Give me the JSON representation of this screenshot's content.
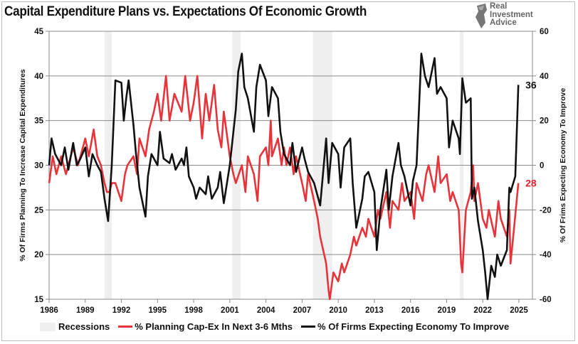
{
  "title": "Capital Expenditure Plans vs. Expectations Of Economic Growth",
  "logo": {
    "lines": [
      "Real",
      "Investment",
      "Advice"
    ]
  },
  "colors": {
    "capex": "#e8333a",
    "economy": "#111111",
    "recession": "#efefef",
    "grid": "#8c8c8c"
  },
  "chart_data": {
    "type": "line",
    "title": "Capital Expenditure Plans vs. Expectations Of Economic Growth",
    "ylabel": "% Of Firms Planning To Increase Capital Expenditures",
    "y2label": "% Of Frims Expecting Economy To Improve",
    "xlim": [
      1986,
      2026.1
    ],
    "ylim": [
      15,
      45
    ],
    "y2lim": [
      -60,
      60
    ],
    "grid": true,
    "xticks": [
      "1986",
      "1989",
      "1992",
      "1995",
      "1998",
      "2001",
      "2004",
      "2007",
      "2010",
      "2013",
      "2016",
      "2019",
      "2022",
      "2025"
    ],
    "yticks": [
      "15",
      "20",
      "25",
      "30",
      "35",
      "40",
      "45"
    ],
    "y2ticks": [
      "-60",
      "-40",
      "-20",
      "0",
      "20",
      "40",
      "60"
    ],
    "recessions": [
      [
        1990.6,
        1991.2
      ],
      [
        2001.2,
        2001.9
      ],
      [
        2007.9,
        2009.5
      ],
      [
        2020.1,
        2020.4
      ]
    ],
    "legend": {
      "placement": "bottom",
      "entries": [
        "Recessions",
        "% Planning Cap-Ex In Next 3-6 Mths",
        "% Of Firms Expecting Economy To Improve"
      ]
    },
    "end_labels": {
      "economy": "36",
      "capex": "28"
    },
    "series": [
      {
        "name": "% Planning Cap-Ex In Next 3-6 Mths",
        "axis": "left",
        "x": [
          1986,
          1986.3,
          1986.6,
          1987,
          1987.4,
          1988,
          1988.4,
          1989,
          1989.3,
          1989.7,
          1990,
          1990.3,
          1990.6,
          1990.8,
          1991,
          1991.2,
          1991.5,
          1992,
          1992.3,
          1992.5,
          1993,
          1993.3,
          1993.5,
          1994,
          1994.3,
          1994.7,
          1995,
          1995.3,
          1995.7,
          1996,
          1996.4,
          1997,
          1997.3,
          1997.7,
          1998,
          1998.3,
          1998.7,
          1999,
          1999.3,
          1999.7,
          2000,
          2000.3,
          2000.5,
          2000.8,
          2001,
          2001.3,
          2001.5,
          2002,
          2002.3,
          2002.5,
          2003,
          2003.3,
          2003.5,
          2004,
          2004.2,
          2004.4,
          2004.5,
          2005,
          2005.3,
          2005.5,
          2005.7,
          2006,
          2006.3,
          2006.5,
          2007,
          2007.3,
          2007.5,
          2008,
          2008.3,
          2008.5,
          2009,
          2009.2,
          2009.3,
          2009.6,
          2010,
          2010.3,
          2010.5,
          2011,
          2011.3,
          2011.5,
          2012,
          2012.3,
          2012.5,
          2013,
          2013.3,
          2013.5,
          2014,
          2014.3,
          2014.5,
          2015,
          2015.3,
          2015.5,
          2016,
          2016.3,
          2016.5,
          2017,
          2017.3,
          2017.5,
          2018,
          2018.3,
          2018.5,
          2019,
          2019.3,
          2019.5,
          2020,
          2020.2,
          2020.3,
          2020.6,
          2021,
          2021.2,
          2021.3,
          2021.6,
          2022,
          2022.3,
          2022.5,
          2023,
          2023.3,
          2023.5,
          2024,
          2024.2,
          2024.3,
          2024.6,
          2024.95
        ],
        "values": [
          28,
          31,
          29,
          31,
          29,
          32,
          30,
          33,
          31,
          34,
          31,
          30,
          28,
          27,
          27,
          28,
          28,
          26,
          29,
          30,
          31,
          29,
          33,
          31,
          34,
          36,
          38,
          35,
          40,
          35,
          38,
          36,
          40,
          35,
          37,
          40,
          33,
          38,
          35,
          39,
          34,
          32,
          36,
          33,
          31,
          29,
          28,
          30,
          27,
          31,
          29,
          26,
          31,
          32,
          30,
          35,
          31,
          33,
          30,
          32,
          30,
          32,
          29,
          31,
          28,
          26,
          29,
          26,
          24,
          22,
          19,
          16,
          15,
          18,
          17,
          19,
          18,
          20,
          22,
          21,
          23,
          22,
          24,
          22,
          25,
          24,
          27,
          23,
          26,
          25,
          28,
          26,
          27,
          24,
          28,
          26,
          29,
          30,
          27,
          31,
          28,
          29,
          26,
          27,
          25,
          19,
          18,
          25,
          27,
          30,
          26,
          28,
          24,
          23,
          25,
          22,
          26,
          24,
          22,
          25,
          19,
          23,
          28
        ]
      },
      {
        "name": "% Of Firms Expecting Economy To Improve",
        "axis": "right",
        "x": [
          1986,
          1986.2,
          1986.5,
          1987,
          1987.3,
          1987.6,
          1988,
          1988.3,
          1988.6,
          1989,
          1989.3,
          1989.6,
          1990,
          1990.3,
          1990.6,
          1990.9,
          1991.2,
          1991.5,
          1992,
          1992.2,
          1992.4,
          1992.6,
          1993,
          1993.2,
          1993.5,
          1994,
          1994.2,
          1994.5,
          1995,
          1995.2,
          1995.5,
          1996,
          1996.2,
          1996.5,
          1997,
          1997.2,
          1997.4,
          1997.6,
          1998,
          1998.2,
          1998.5,
          1999,
          1999.2,
          1999.5,
          2000,
          2000.2,
          2000.5,
          2001,
          2001.3,
          2001.5,
          2001.7,
          2002,
          2002.2,
          2002.5,
          2003,
          2003.2,
          2003.5,
          2004,
          2004.2,
          2004.5,
          2005,
          2005.2,
          2005.5,
          2006,
          2006.2,
          2006.5,
          2007,
          2007.2,
          2007.5,
          2008,
          2008.2,
          2008.5,
          2009,
          2009.2,
          2009.5,
          2010,
          2010.2,
          2010.5,
          2011,
          2011.2,
          2011.5,
          2012,
          2012.2,
          2012.5,
          2013,
          2013.2,
          2013.5,
          2014,
          2014.2,
          2014.5,
          2015,
          2015.2,
          2015.5,
          2016,
          2016.2,
          2016.5,
          2016.9,
          2017.2,
          2017.5,
          2018,
          2018.2,
          2018.5,
          2019,
          2019.2,
          2019.5,
          2020,
          2020.1,
          2020.3,
          2020.6,
          2021,
          2021.1,
          2021.3,
          2021.6,
          2022,
          2022.2,
          2022.4,
          2022.7,
          2023,
          2023.2,
          2023.5,
          2024,
          2024.2,
          2024.3,
          2024.7,
          2024.95
        ],
        "values": [
          0,
          12,
          5,
          0,
          8,
          -2,
          10,
          0,
          3,
          8,
          -5,
          5,
          0,
          -3,
          -15,
          -25,
          0,
          38,
          37,
          20,
          30,
          38,
          18,
          6,
          -10,
          -23,
          -5,
          5,
          0,
          15,
          3,
          1,
          5,
          -2,
          3,
          0,
          8,
          -5,
          -10,
          -15,
          -10,
          -13,
          -5,
          -15,
          -10,
          -3,
          -17,
          0,
          15,
          25,
          42,
          50,
          35,
          30,
          15,
          35,
          45,
          38,
          22,
          35,
          30,
          15,
          5,
          0,
          10,
          -3,
          8,
          3,
          -3,
          -8,
          -12,
          -18,
          12,
          -8,
          10,
          5,
          -10,
          8,
          12,
          -8,
          -28,
          -15,
          -5,
          -3,
          -12,
          -38,
          -20,
          -2,
          -20,
          -5,
          10,
          0,
          -5,
          -18,
          -7,
          0,
          50,
          40,
          35,
          48,
          32,
          35,
          30,
          8,
          20,
          12,
          5,
          39,
          28,
          30,
          -15,
          -10,
          -25,
          -38,
          -48,
          -60,
          -45,
          -50,
          -40,
          -45,
          -38,
          -10,
          -12,
          -5,
          36
        ]
      }
    ]
  }
}
